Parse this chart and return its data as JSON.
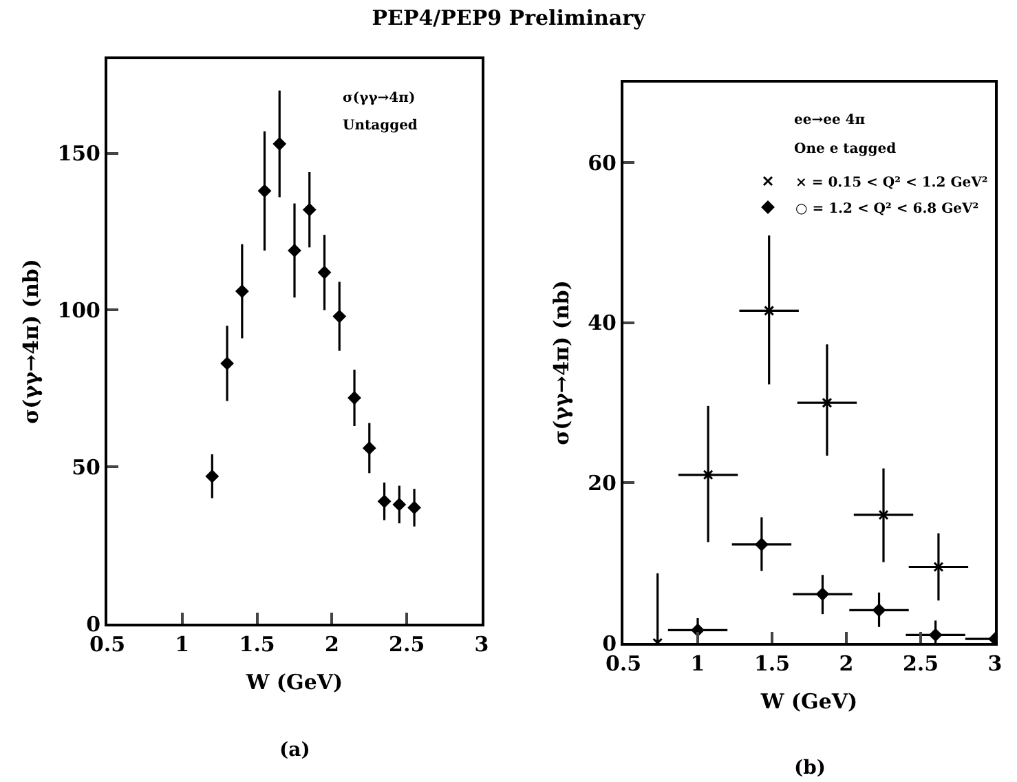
{
  "chart_data": [
    {
      "type": "scatter",
      "title": "PEP4/PEP9 Preliminary",
      "xlabel": "W (GeV)",
      "ylabel": "σ(γγ→4π) (nb)",
      "annotations": [
        "σ(γγ→4π)",
        "Untagged",
        "(a)"
      ],
      "xlim": [
        0.5,
        3
      ],
      "xticks": [
        0.5,
        1,
        1.5,
        2,
        2.5,
        3
      ],
      "ylim": [
        0,
        180
      ],
      "yticks": [
        0,
        50,
        100,
        150
      ],
      "grid": false,
      "marker": "diamond",
      "legend": false,
      "x": [
        1.2,
        1.3,
        1.4,
        1.55,
        1.65,
        1.75,
        1.85,
        1.95,
        2.05,
        2.15,
        2.25,
        2.35,
        2.45,
        2.55
      ],
      "series": [
        {
          "color": "#000000",
          "values": [
            47,
            83,
            106,
            138,
            153,
            119,
            132,
            112,
            98,
            72,
            56,
            39,
            38,
            37
          ],
          "errors": [
            7,
            12,
            15,
            19,
            17,
            15,
            12,
            12,
            11,
            9,
            8,
            6,
            6,
            6
          ]
        }
      ]
    },
    {
      "type": "scatter",
      "xlabel": "W (GeV)",
      "ylabel": "σ(γγ→4π) (nb)",
      "annotations": [
        "ee→ee 4π",
        "One e tagged",
        "(b)"
      ],
      "xlim": [
        0.5,
        3
      ],
      "xticks": [
        0.5,
        1,
        1.5,
        2,
        2.5,
        3
      ],
      "ylim": [
        0,
        70
      ],
      "yticks": [
        0,
        20,
        40,
        60
      ],
      "grid": false,
      "legend": "top right",
      "series": [
        {
          "name": "× = 0.15 < Q² < 1.2 GeV²",
          "color": "#000000",
          "marker": "cross",
          "x": [
            0.73,
            1.07,
            1.48,
            1.87,
            2.25,
            2.62
          ],
          "values": [
            0,
            21,
            41.5,
            30,
            16,
            9.5
          ],
          "errors": [
            [
              0,
              8.7
            ],
            [
              12.6,
              29.6
            ],
            [
              32.3,
              50.9
            ],
            [
              23.4,
              37.3
            ],
            [
              10.1,
              21.8
            ],
            [
              5.3,
              13.7
            ]
          ],
          "xerrors": [
            null,
            0.2,
            0.2,
            0.2,
            0.2,
            0.2
          ]
        },
        {
          "name": "○ = 1.2 < Q² < 6.8 GeV²",
          "color": "#000000",
          "marker": "diamond",
          "x": [
            1.0,
            1.43,
            1.84,
            2.22,
            2.6,
            3.0
          ],
          "values": [
            1.6,
            12.3,
            6.1,
            4.1,
            1,
            0.5
          ],
          "errors": [
            [
              0.9,
              3.1
            ],
            [
              9,
              15.7
            ],
            [
              3.6,
              8.5
            ],
            [
              2,
              6.3
            ],
            [
              0,
              2.8
            ],
            [
              0,
              1
            ]
          ],
          "xerrors": [
            0.2,
            0.2,
            0.2,
            0.2,
            0.2,
            [
              2.8,
              3.0
            ]
          ]
        }
      ]
    }
  ]
}
